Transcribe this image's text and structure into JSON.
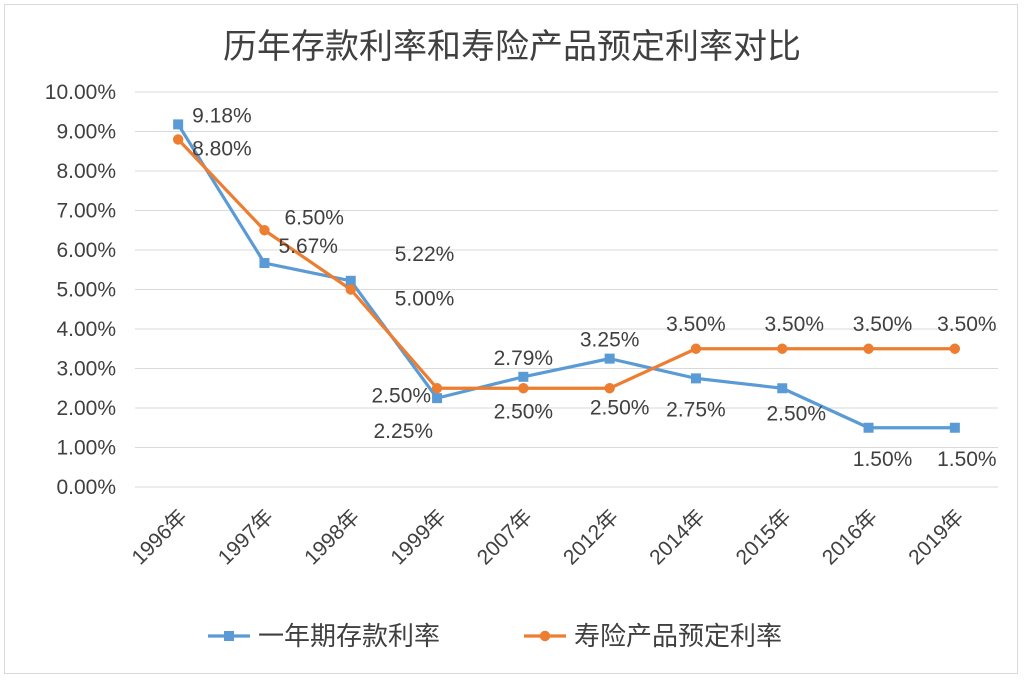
{
  "chart_data": {
    "type": "line",
    "title": "历年存款利率和寿险产品预定利率对比",
    "categories": [
      "1996年",
      "1997年",
      "1998年",
      "1999年",
      "2007年",
      "2012年",
      "2014年",
      "2015年",
      "2016年",
      "2019年"
    ],
    "ylim": [
      0,
      10
    ],
    "y_ticks": [
      "0.00%",
      "1.00%",
      "2.00%",
      "3.00%",
      "4.00%",
      "5.00%",
      "6.00%",
      "7.00%",
      "8.00%",
      "9.00%",
      "10.00%"
    ],
    "grid": true,
    "legend_position": "bottom",
    "series": [
      {
        "name": "一年期存款利率",
        "color": "#5b9bd5",
        "marker": "square",
        "values": [
          9.18,
          5.67,
          5.22,
          2.25,
          2.79,
          3.25,
          2.75,
          2.5,
          1.5,
          1.5
        ],
        "labels": [
          "9.18%",
          "5.67%",
          "5.22%",
          "2.25%",
          "2.79%",
          "3.25%",
          "2.75%",
          "2.50%",
          "1.50%",
          "1.50%"
        ]
      },
      {
        "name": "寿险产品预定利率",
        "color": "#ed7d31",
        "marker": "circle",
        "values": [
          8.8,
          6.5,
          5.0,
          2.5,
          2.5,
          2.5,
          3.5,
          3.5,
          3.5,
          3.5
        ],
        "labels": [
          "8.80%",
          "6.50%",
          "5.00%",
          "2.50%",
          "2.50%",
          "2.50%",
          "3.50%",
          "3.50%",
          "3.50%",
          "3.50%"
        ]
      }
    ]
  }
}
